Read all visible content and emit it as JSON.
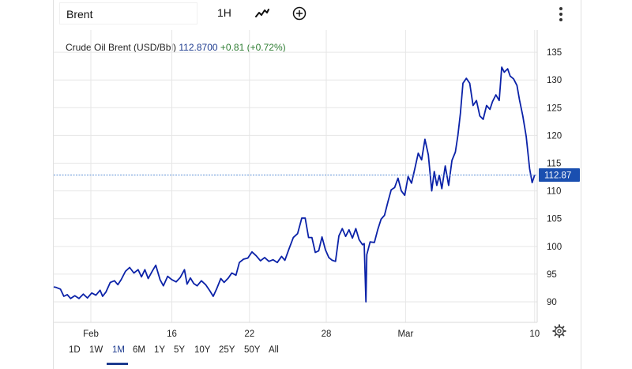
{
  "toolbar": {
    "symbol": "Brent",
    "interval": "1H",
    "icons": [
      "line-chart-icon",
      "add-indicator-icon",
      "more-options-icon"
    ]
  },
  "legend": {
    "name": "Crude Oil Brent (USD/Bbl)",
    "price": "112.8700",
    "change": "+0.81 (+0.72%)"
  },
  "price_label": "112.87",
  "ranges": [
    "1D",
    "1W",
    "1M",
    "6M",
    "1Y",
    "5Y",
    "10Y",
    "25Y",
    "50Y",
    "All"
  ],
  "active_range": "1M",
  "colors": {
    "line": "#0b22a8",
    "price_line": "#5b8fd6",
    "price_badge": "#1a4fb0",
    "grid": "#e6e6e6",
    "change_positive": "#2e7d32"
  },
  "chart_data": {
    "type": "line",
    "series": [
      {
        "values": [
          [
            0.0,
            92.7
          ],
          [
            0.3,
            92.6
          ],
          [
            0.8,
            92.3
          ],
          [
            1.2,
            91.0
          ],
          [
            1.6,
            91.3
          ],
          [
            2.0,
            90.6
          ],
          [
            2.5,
            91.1
          ],
          [
            3.0,
            90.6
          ],
          [
            3.5,
            91.4
          ],
          [
            4.0,
            90.7
          ],
          [
            4.5,
            91.6
          ],
          [
            5.0,
            91.2
          ],
          [
            5.5,
            92.1
          ],
          [
            5.8,
            91.0
          ],
          [
            6.2,
            91.8
          ],
          [
            6.7,
            93.5
          ],
          [
            7.2,
            93.8
          ],
          [
            7.6,
            93.1
          ],
          [
            8.0,
            94.0
          ],
          [
            8.5,
            95.5
          ],
          [
            9.0,
            96.2
          ],
          [
            9.5,
            95.2
          ],
          [
            10.0,
            95.8
          ],
          [
            10.4,
            94.5
          ],
          [
            10.8,
            95.8
          ],
          [
            11.2,
            94.2
          ],
          [
            11.7,
            95.6
          ],
          [
            12.1,
            96.6
          ],
          [
            12.6,
            94.0
          ],
          [
            13.0,
            92.9
          ],
          [
            13.5,
            94.6
          ],
          [
            14.0,
            94.0
          ],
          [
            14.5,
            93.6
          ],
          [
            15.0,
            94.4
          ],
          [
            15.5,
            95.8
          ],
          [
            15.8,
            93.2
          ],
          [
            16.2,
            94.3
          ],
          [
            16.6,
            93.3
          ],
          [
            17.0,
            92.9
          ],
          [
            17.5,
            93.8
          ],
          [
            18.0,
            93.1
          ],
          [
            18.5,
            92.0
          ],
          [
            18.9,
            91.0
          ],
          [
            19.3,
            92.3
          ],
          [
            19.8,
            94.2
          ],
          [
            20.2,
            93.5
          ],
          [
            20.7,
            94.3
          ],
          [
            21.1,
            95.2
          ],
          [
            21.6,
            94.8
          ],
          [
            22.0,
            97.1
          ],
          [
            22.5,
            97.7
          ],
          [
            23.0,
            97.9
          ],
          [
            23.5,
            99.0
          ],
          [
            24.0,
            98.3
          ],
          [
            24.5,
            97.4
          ],
          [
            25.0,
            98.0
          ],
          [
            25.5,
            97.3
          ],
          [
            26.0,
            97.6
          ],
          [
            26.5,
            97.1
          ],
          [
            27.0,
            98.2
          ],
          [
            27.4,
            97.5
          ],
          [
            27.9,
            99.6
          ],
          [
            28.4,
            101.6
          ],
          [
            28.9,
            102.3
          ],
          [
            29.4,
            105.1
          ],
          [
            29.8,
            105.1
          ],
          [
            30.2,
            101.6
          ],
          [
            30.6,
            101.6
          ],
          [
            31.0,
            98.9
          ],
          [
            31.4,
            99.2
          ],
          [
            31.8,
            101.7
          ],
          [
            32.2,
            99.4
          ],
          [
            32.6,
            98.0
          ],
          [
            33.0,
            97.5
          ],
          [
            33.4,
            97.3
          ],
          [
            33.8,
            101.9
          ],
          [
            34.2,
            103.2
          ],
          [
            34.6,
            101.8
          ],
          [
            35.0,
            103.0
          ],
          [
            35.4,
            101.5
          ],
          [
            35.8,
            103.2
          ],
          [
            36.2,
            101.2
          ],
          [
            36.6,
            100.3
          ],
          [
            36.8,
            100.5
          ],
          [
            37.0,
            90.0
          ],
          [
            37.1,
            98.5
          ],
          [
            37.5,
            100.8
          ],
          [
            38.0,
            100.7
          ],
          [
            38.4,
            103.0
          ],
          [
            38.8,
            104.9
          ],
          [
            39.2,
            105.6
          ],
          [
            39.6,
            108.0
          ],
          [
            40.0,
            110.2
          ],
          [
            40.4,
            110.6
          ],
          [
            40.8,
            112.3
          ],
          [
            41.2,
            110.0
          ],
          [
            41.6,
            109.2
          ],
          [
            42.0,
            112.6
          ],
          [
            42.4,
            111.4
          ],
          [
            42.8,
            114.0
          ],
          [
            43.2,
            116.8
          ],
          [
            43.6,
            115.6
          ],
          [
            44.0,
            119.3
          ],
          [
            44.4,
            116.5
          ],
          [
            44.8,
            110.0
          ],
          [
            45.1,
            113.5
          ],
          [
            45.4,
            111.0
          ],
          [
            45.7,
            112.8
          ],
          [
            46.0,
            110.4
          ],
          [
            46.4,
            114.5
          ],
          [
            46.8,
            111.0
          ],
          [
            47.2,
            115.5
          ],
          [
            47.6,
            117.0
          ],
          [
            47.9,
            120.0
          ],
          [
            48.2,
            124.0
          ],
          [
            48.5,
            129.4
          ],
          [
            48.9,
            130.3
          ],
          [
            49.3,
            129.4
          ],
          [
            49.7,
            125.4
          ],
          [
            50.1,
            126.3
          ],
          [
            50.5,
            123.5
          ],
          [
            50.9,
            122.9
          ],
          [
            51.3,
            125.4
          ],
          [
            51.7,
            124.7
          ],
          [
            52.0,
            126.1
          ],
          [
            52.4,
            127.3
          ],
          [
            52.8,
            126.3
          ],
          [
            53.1,
            132.3
          ],
          [
            53.4,
            131.4
          ],
          [
            53.8,
            132.0
          ],
          [
            54.1,
            130.7
          ],
          [
            54.5,
            130.2
          ],
          [
            54.9,
            129.0
          ],
          [
            55.2,
            126.4
          ],
          [
            55.6,
            123.5
          ],
          [
            56.0,
            119.8
          ],
          [
            56.4,
            114.0
          ],
          [
            56.7,
            111.5
          ],
          [
            57.0,
            112.87
          ]
        ]
      }
    ],
    "last_value": 112.87,
    "x_ticks": [
      {
        "label": "Feb",
        "x": 4.4
      },
      {
        "label": "16",
        "x": 14.0
      },
      {
        "label": "22",
        "x": 23.2
      },
      {
        "label": "28",
        "x": 32.3
      },
      {
        "label": "Mar",
        "x": 41.7
      },
      {
        "label": "10",
        "x": 57.0
      }
    ],
    "y_ticks": [
      90,
      95,
      100,
      105,
      110,
      115,
      120,
      125,
      130,
      135
    ],
    "xlim": [
      0,
      57.3
    ],
    "ylim": [
      86.3,
      139.0
    ],
    "grid": true,
    "legend_position": "top-left"
  }
}
